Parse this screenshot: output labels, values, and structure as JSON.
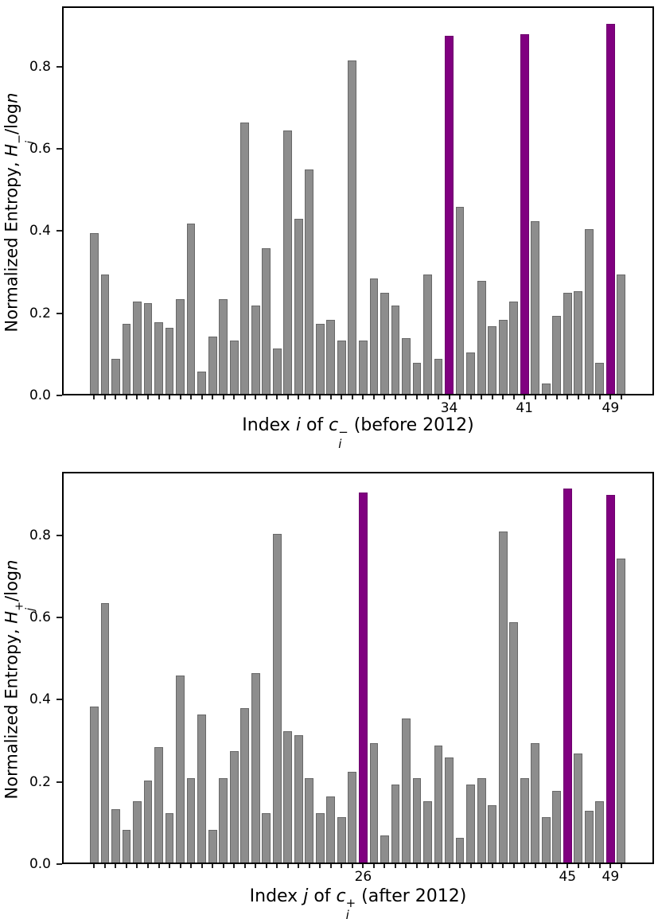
{
  "figure": {
    "background": "#ffffff",
    "bar_color": "#8d8d8d",
    "bar_edge_color": "#686868",
    "highlight_color": "#800080",
    "axis_color": "#000000"
  },
  "chart_data": [
    {
      "id": "entropy-before-2012",
      "type": "bar",
      "title": "",
      "xlabel": "Index i of c_i^- (before 2012)",
      "ylabel": "Normalized Entropy, H_i^-/log n",
      "ylim": [
        0,
        0.95
      ],
      "grid": false,
      "yticks": [
        "0.0",
        "0.2",
        "0.4",
        "0.6",
        "0.8"
      ],
      "x": [
        1,
        2,
        3,
        4,
        5,
        6,
        7,
        8,
        9,
        10,
        11,
        12,
        13,
        14,
        15,
        16,
        17,
        18,
        19,
        20,
        21,
        22,
        23,
        24,
        25,
        26,
        27,
        28,
        29,
        30,
        31,
        32,
        33,
        34,
        35,
        36,
        37,
        38,
        39,
        40,
        41,
        42,
        43,
        44,
        45,
        46,
        47,
        48,
        49,
        50
      ],
      "values": [
        0.39,
        0.29,
        0.085,
        0.17,
        0.225,
        0.22,
        0.175,
        0.16,
        0.23,
        0.415,
        0.055,
        0.14,
        0.23,
        0.13,
        0.66,
        0.215,
        0.355,
        0.11,
        0.64,
        0.425,
        0.545,
        0.17,
        0.18,
        0.13,
        0.81,
        0.13,
        0.28,
        0.245,
        0.215,
        0.135,
        0.075,
        0.29,
        0.085,
        0.87,
        0.455,
        0.1,
        0.275,
        0.165,
        0.18,
        0.225,
        0.875,
        0.42,
        0.025,
        0.19,
        0.245,
        0.25,
        0.4,
        0.075,
        0.9,
        0.29
      ],
      "highlighted_indices": [
        34,
        41,
        49
      ],
      "xtick_labeled": [
        34,
        41,
        49
      ],
      "xlabel_parts": {
        "pre": "Index ",
        "var1": "i",
        "mid": " of ",
        "var2": "c",
        "sup": "−",
        "sub": "i",
        "post": " (before 2012)"
      },
      "ylabel_parts": {
        "pre": "Normalized Entropy, ",
        "var": "H",
        "sup": "−",
        "sub": "i",
        "mid": "/log",
        "var2": "n"
      }
    },
    {
      "id": "entropy-after-2012",
      "type": "bar",
      "title": "",
      "xlabel": "Index j of c_j^+ (after 2012)",
      "ylabel": "Normalized Entropy, H_j^+/log n",
      "ylim": [
        0,
        0.95
      ],
      "grid": false,
      "yticks": [
        "0.0",
        "0.2",
        "0.4",
        "0.6",
        "0.8"
      ],
      "x": [
        1,
        2,
        3,
        4,
        5,
        6,
        7,
        8,
        9,
        10,
        11,
        12,
        13,
        14,
        15,
        16,
        17,
        18,
        19,
        20,
        21,
        22,
        23,
        24,
        25,
        26,
        27,
        28,
        29,
        30,
        31,
        32,
        33,
        34,
        35,
        36,
        37,
        38,
        39,
        40,
        41,
        42,
        43,
        44,
        45,
        46,
        47,
        48,
        49,
        50
      ],
      "values": [
        0.38,
        0.63,
        0.13,
        0.08,
        0.15,
        0.2,
        0.28,
        0.12,
        0.455,
        0.205,
        0.36,
        0.08,
        0.205,
        0.27,
        0.375,
        0.46,
        0.12,
        0.8,
        0.32,
        0.31,
        0.205,
        0.12,
        0.16,
        0.11,
        0.22,
        0.9,
        0.29,
        0.065,
        0.19,
        0.35,
        0.205,
        0.15,
        0.285,
        0.255,
        0.06,
        0.19,
        0.205,
        0.14,
        0.805,
        0.585,
        0.205,
        0.29,
        0.11,
        0.175,
        0.91,
        0.265,
        0.125,
        0.15,
        0.895,
        0.74
      ],
      "highlighted_indices": [
        26,
        45,
        49
      ],
      "xtick_labeled": [
        26,
        45,
        49
      ],
      "xlabel_parts": {
        "pre": "Index ",
        "var1": "j",
        "mid": " of ",
        "var2": "c",
        "sup": "+",
        "sub": "j",
        "post": " (after 2012)"
      },
      "ylabel_parts": {
        "pre": "Normalized Entropy, ",
        "var": "H",
        "sup": "+",
        "sub": "j",
        "mid": "/log",
        "var2": "n"
      }
    }
  ]
}
